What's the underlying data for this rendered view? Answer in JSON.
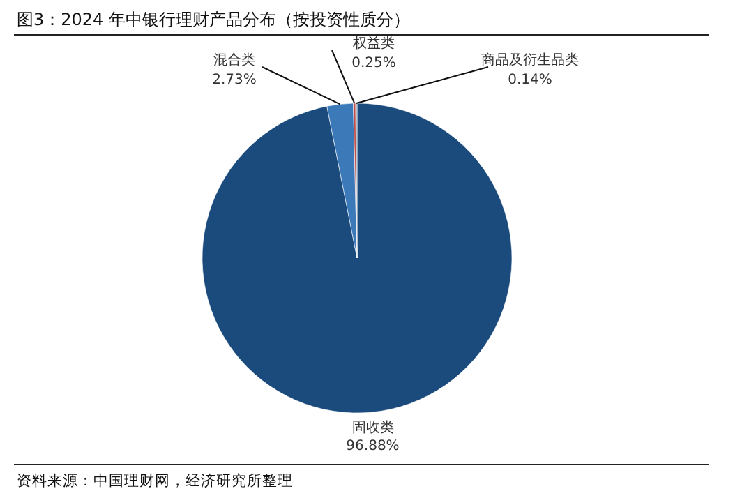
{
  "chart_data": {
    "type": "pie",
    "title": "图3：2024 年中银行理财产品分布（按投资性质分）",
    "categories": [
      "固收类",
      "混合类",
      "权益类",
      "商品及衍生品类"
    ],
    "values": [
      96.88,
      2.73,
      0.25,
      0.14
    ],
    "colors": [
      "#1b4a7c",
      "#3b79b9",
      "#c0504d",
      "#9aa6b2"
    ],
    "value_labels": [
      "96.88%",
      "2.73%",
      "0.25%",
      "0.14%"
    ],
    "annotations": [
      "资料来源：中国理财网，经济研究所整理"
    ]
  }
}
